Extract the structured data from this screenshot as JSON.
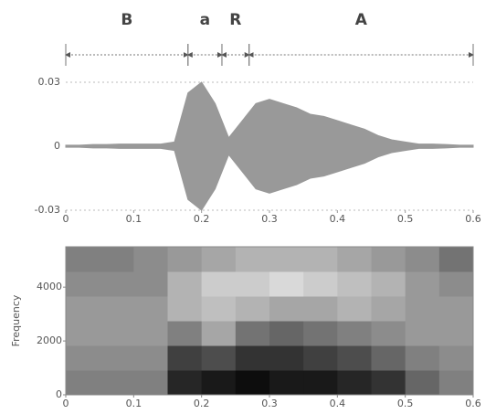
{
  "chart_data": [
    {
      "type": "waveform",
      "segments": [
        {
          "label": "B",
          "start": 0,
          "end": 0.18
        },
        {
          "label": "a",
          "start": 0.18,
          "end": 0.23
        },
        {
          "label": "R",
          "start": 0.23,
          "end": 0.27
        },
        {
          "label": "A",
          "start": 0.27,
          "end": 0.6
        }
      ],
      "x": [
        0,
        0.02,
        0.04,
        0.06,
        0.08,
        0.1,
        0.12,
        0.14,
        0.16,
        0.18,
        0.2,
        0.22,
        0.24,
        0.26,
        0.28,
        0.3,
        0.32,
        0.34,
        0.36,
        0.38,
        0.4,
        0.42,
        0.44,
        0.46,
        0.48,
        0.5,
        0.52,
        0.54,
        0.56,
        0.58,
        0.6
      ],
      "amplitude": [
        0.0005,
        0.0005,
        0.0008,
        0.0008,
        0.001,
        0.001,
        0.001,
        0.001,
        0.002,
        0.025,
        0.03,
        0.02,
        0.004,
        0.012,
        0.02,
        0.022,
        0.02,
        0.018,
        0.015,
        0.014,
        0.012,
        0.01,
        0.008,
        0.005,
        0.003,
        0.002,
        0.001,
        0.001,
        0.0008,
        0.0005,
        0.0005
      ],
      "color": "#999999",
      "xlim": [
        0,
        0.6
      ],
      "xticks": [
        0,
        0.1,
        0.2,
        0.3,
        0.4,
        0.5,
        0.6
      ],
      "ylim": [
        -0.03,
        0.03
      ],
      "yticks": [
        -0.03,
        0,
        0.03
      ]
    },
    {
      "type": "spectrogram",
      "ylabel": "Frequency",
      "intensity": [
        [
          0.5,
          0.5,
          0.5,
          0.85,
          0.9,
          0.95,
          0.9,
          0.9,
          0.85,
          0.8,
          0.6,
          0.5
        ],
        [
          0.45,
          0.45,
          0.45,
          0.75,
          0.7,
          0.8,
          0.8,
          0.75,
          0.7,
          0.6,
          0.5,
          0.45
        ],
        [
          0.4,
          0.4,
          0.4,
          0.5,
          0.35,
          0.55,
          0.6,
          0.55,
          0.5,
          0.45,
          0.4,
          0.4
        ],
        [
          0.4,
          0.4,
          0.4,
          0.3,
          0.25,
          0.3,
          0.35,
          0.35,
          0.3,
          0.35,
          0.4,
          0.4
        ],
        [
          0.45,
          0.45,
          0.45,
          0.3,
          0.2,
          0.2,
          0.15,
          0.2,
          0.25,
          0.3,
          0.4,
          0.45
        ],
        [
          0.5,
          0.5,
          0.45,
          0.4,
          0.35,
          0.3,
          0.3,
          0.3,
          0.35,
          0.4,
          0.45,
          0.55
        ]
      ],
      "xlim": [
        0,
        0.6
      ],
      "xticks": [
        0,
        0.1,
        0.2,
        0.3,
        0.4,
        0.5,
        0.6
      ],
      "ylim": [
        0,
        5500
      ],
      "yticks": [
        0,
        2000,
        4000
      ]
    }
  ]
}
